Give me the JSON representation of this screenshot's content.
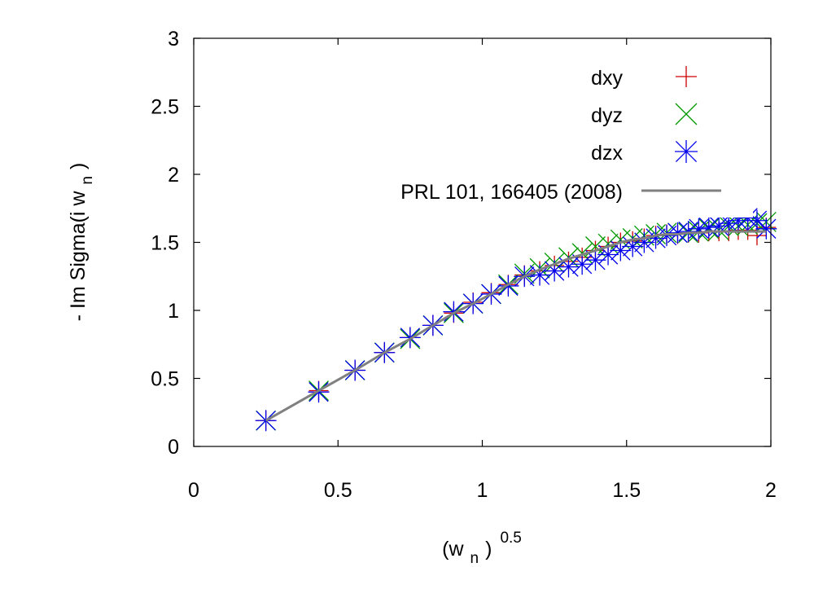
{
  "chart_data": {
    "type": "scatter",
    "xlim": [
      0,
      2
    ],
    "ylim": [
      0,
      3
    ],
    "xticks": [
      "0",
      "0.5",
      "1",
      "1.5",
      "2"
    ],
    "yticks": [
      "0",
      "0.5",
      "1",
      "1.5",
      "2",
      "2.5",
      "3"
    ],
    "xlabel": {
      "main": "(w",
      "sub": "n",
      "close": ")",
      "sup": "0.5"
    },
    "ylabel": {
      "main": "- Im Sigma(i w",
      "sub": "n",
      "close": ")"
    },
    "legend_position": "top-right",
    "grid": false,
    "series": [
      {
        "name": "dxy",
        "marker": "plus",
        "color": "#cc0000",
        "x": [
          0.25,
          0.433,
          0.559,
          0.661,
          0.75,
          0.829,
          0.901,
          0.968,
          1.031,
          1.09,
          1.146,
          1.199,
          1.25,
          1.299,
          1.346,
          1.392,
          1.436,
          1.479,
          1.521,
          1.561,
          1.601,
          1.639,
          1.677,
          1.714,
          1.75,
          1.785,
          1.82,
          1.854,
          1.887,
          1.92,
          1.952,
          1.984
        ],
        "y": [
          0.19,
          0.41,
          0.56,
          0.69,
          0.8,
          0.89,
          0.98,
          1.06,
          1.13,
          1.19,
          1.26,
          1.29,
          1.33,
          1.36,
          1.39,
          1.44,
          1.47,
          1.5,
          1.51,
          1.53,
          1.55,
          1.56,
          1.56,
          1.57,
          1.57,
          1.58,
          1.58,
          1.58,
          1.59,
          1.59,
          1.55,
          1.61
        ]
      },
      {
        "name": "dyz",
        "marker": "cross",
        "color": "#009900",
        "x": [
          0.25,
          0.433,
          0.559,
          0.661,
          0.75,
          0.829,
          0.901,
          0.968,
          1.031,
          1.09,
          1.146,
          1.199,
          1.25,
          1.299,
          1.346,
          1.392,
          1.436,
          1.479,
          1.521,
          1.561,
          1.601,
          1.639,
          1.677,
          1.714,
          1.75,
          1.785,
          1.82,
          1.854,
          1.887,
          1.92,
          1.952,
          1.984
        ],
        "y": [
          0.19,
          0.41,
          0.56,
          0.69,
          0.79,
          0.89,
          0.98,
          1.05,
          1.12,
          1.19,
          1.27,
          1.31,
          1.35,
          1.39,
          1.42,
          1.47,
          1.49,
          1.52,
          1.53,
          1.55,
          1.56,
          1.57,
          1.57,
          1.57,
          1.58,
          1.6,
          1.59,
          1.62,
          1.62,
          1.63,
          1.64,
          1.65
        ]
      },
      {
        "name": "dzx",
        "marker": "star",
        "color": "#0000ee",
        "x": [
          0.25,
          0.433,
          0.559,
          0.661,
          0.75,
          0.829,
          0.901,
          0.968,
          1.031,
          1.09,
          1.146,
          1.199,
          1.25,
          1.299,
          1.346,
          1.392,
          1.436,
          1.479,
          1.521,
          1.561,
          1.601,
          1.639,
          1.677,
          1.714,
          1.75,
          1.785,
          1.82,
          1.854,
          1.887,
          1.92,
          1.952,
          1.984
        ],
        "y": [
          0.19,
          0.4,
          0.56,
          0.69,
          0.8,
          0.89,
          0.99,
          1.05,
          1.12,
          1.18,
          1.25,
          1.26,
          1.29,
          1.32,
          1.34,
          1.37,
          1.41,
          1.44,
          1.47,
          1.5,
          1.53,
          1.55,
          1.57,
          1.58,
          1.6,
          1.61,
          1.62,
          1.64,
          1.66,
          1.68,
          1.66,
          1.6
        ]
      },
      {
        "name": "PRL 101, 166405 (2008)",
        "marker": "line",
        "color": "#808080",
        "x": [
          0.25,
          0.433,
          0.559,
          0.661,
          0.75,
          0.829,
          0.901,
          0.968,
          1.031,
          1.09,
          1.146,
          1.199,
          1.25,
          1.299,
          1.346,
          1.392,
          1.436,
          1.479,
          1.521,
          1.561,
          1.601,
          1.639,
          1.677,
          1.714,
          1.75,
          1.785,
          1.82,
          1.854,
          1.887,
          1.92,
          1.952,
          1.984
        ],
        "y": [
          0.19,
          0.41,
          0.56,
          0.69,
          0.79,
          0.89,
          0.98,
          1.05,
          1.12,
          1.19,
          1.25,
          1.3,
          1.34,
          1.38,
          1.41,
          1.44,
          1.47,
          1.5,
          1.52,
          1.53,
          1.55,
          1.56,
          1.56,
          1.57,
          1.57,
          1.58,
          1.58,
          1.58,
          1.58,
          1.58,
          1.58,
          1.58
        ]
      }
    ]
  }
}
